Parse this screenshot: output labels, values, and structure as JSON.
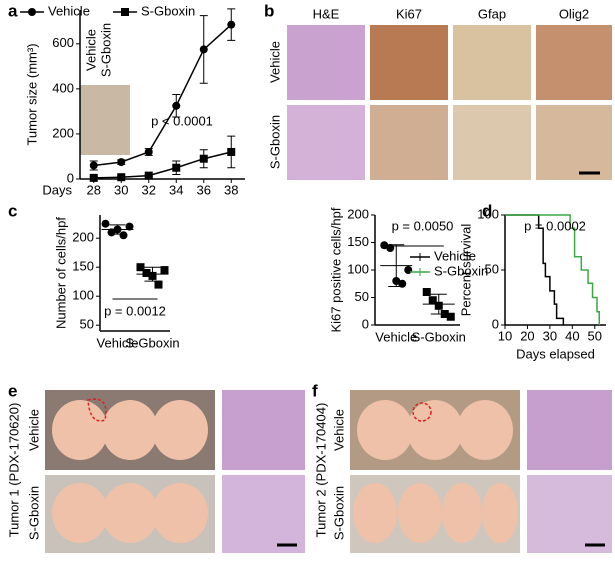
{
  "panel_labels": [
    "a",
    "b",
    "c",
    "d",
    "e",
    "f"
  ],
  "chart_data": [
    {
      "type": "line",
      "xlabel": "Days",
      "ylabel": "Tumor size (mm³)",
      "annotation": "p < 0.0001",
      "x": [
        28,
        30,
        32,
        34,
        36,
        38
      ],
      "xlim": [
        27,
        39
      ],
      "xticks": [
        28,
        30,
        32,
        34,
        36,
        38
      ],
      "ylim": [
        0,
        750
      ],
      "yticks": [
        0,
        200,
        400,
        600
      ],
      "series": [
        {
          "name": "Vehicle",
          "color": "#000000",
          "marker": "circle",
          "values": [
            60,
            75,
            120,
            325,
            575,
            685
          ],
          "errors": [
            20,
            10,
            15,
            50,
            150,
            70
          ]
        },
        {
          "name": "S-Gboxin",
          "color": "#000000",
          "marker": "square",
          "values": [
            5,
            8,
            15,
            50,
            90,
            120
          ],
          "errors": [
            5,
            5,
            5,
            30,
            40,
            70
          ]
        }
      ],
      "inset": {
        "labels": [
          "Vehicle",
          "S-Gboxin"
        ]
      }
    },
    {
      "type": "strip",
      "ylabel": "Number of cells/hpf",
      "annotation": "p = 0.0012",
      "categories": [
        "Vehicle",
        "S-Gboxin"
      ],
      "ylim": [
        40,
        240
      ],
      "yticks": [
        50,
        100,
        150,
        200
      ],
      "points": [
        [
          225,
          210,
          215,
          205,
          220
        ],
        [
          150,
          140,
          135,
          120,
          145
        ]
      ],
      "mean": [
        215,
        138
      ],
      "sd": [
        8,
        12
      ],
      "markers": [
        "circle",
        "square"
      ]
    },
    {
      "type": "strip",
      "ylabel": "Ki67 positive cells/hpf",
      "annotation": "p = 0.0050",
      "categories": [
        "Vehicle",
        "S-Gboxin"
      ],
      "ylim": [
        0,
        200
      ],
      "yticks": [
        0,
        50,
        100,
        150,
        200
      ],
      "points": [
        [
          145,
          140,
          80,
          75,
          100
        ],
        [
          60,
          45,
          35,
          20,
          15
        ]
      ],
      "mean": [
        108,
        38
      ],
      "sd": [
        38,
        18
      ],
      "markers": [
        "circle",
        "square"
      ]
    },
    {
      "type": "step",
      "xlabel": "Days elapsed",
      "ylabel": "Percent survival",
      "annotation": "p = 0.0002",
      "xlim": [
        10,
        55
      ],
      "xticks": [
        10,
        20,
        30,
        40,
        50
      ],
      "ylim": [
        0,
        100
      ],
      "yticks": [
        0,
        50,
        100
      ],
      "series": [
        {
          "name": "Vehicle",
          "color": "#000000",
          "x": [
            10,
            25,
            27,
            28,
            30,
            32,
            33,
            36
          ],
          "values": [
            100,
            88,
            56,
            44,
            31,
            19,
            6,
            0
          ]
        },
        {
          "name": "S-Gboxin",
          "color": "#3aa845",
          "x": [
            10,
            39,
            41,
            44,
            47,
            49,
            51,
            52
          ],
          "values": [
            100,
            88,
            62,
            50,
            38,
            25,
            12,
            0
          ]
        }
      ]
    }
  ],
  "panel_b": {
    "columns": [
      "H&E",
      "Ki67",
      "Gfap",
      "Olig2"
    ],
    "rows": [
      "Vehicle",
      "S-Gboxin"
    ]
  },
  "panel_e": {
    "title": "Tumor 1 (PDX-170620)",
    "rows": [
      "Vehicle",
      "S-Gboxin"
    ]
  },
  "panel_f": {
    "title": "Tumor 2 (PDX-170404)",
    "rows": [
      "Vehicle",
      "S-Gboxin"
    ]
  }
}
